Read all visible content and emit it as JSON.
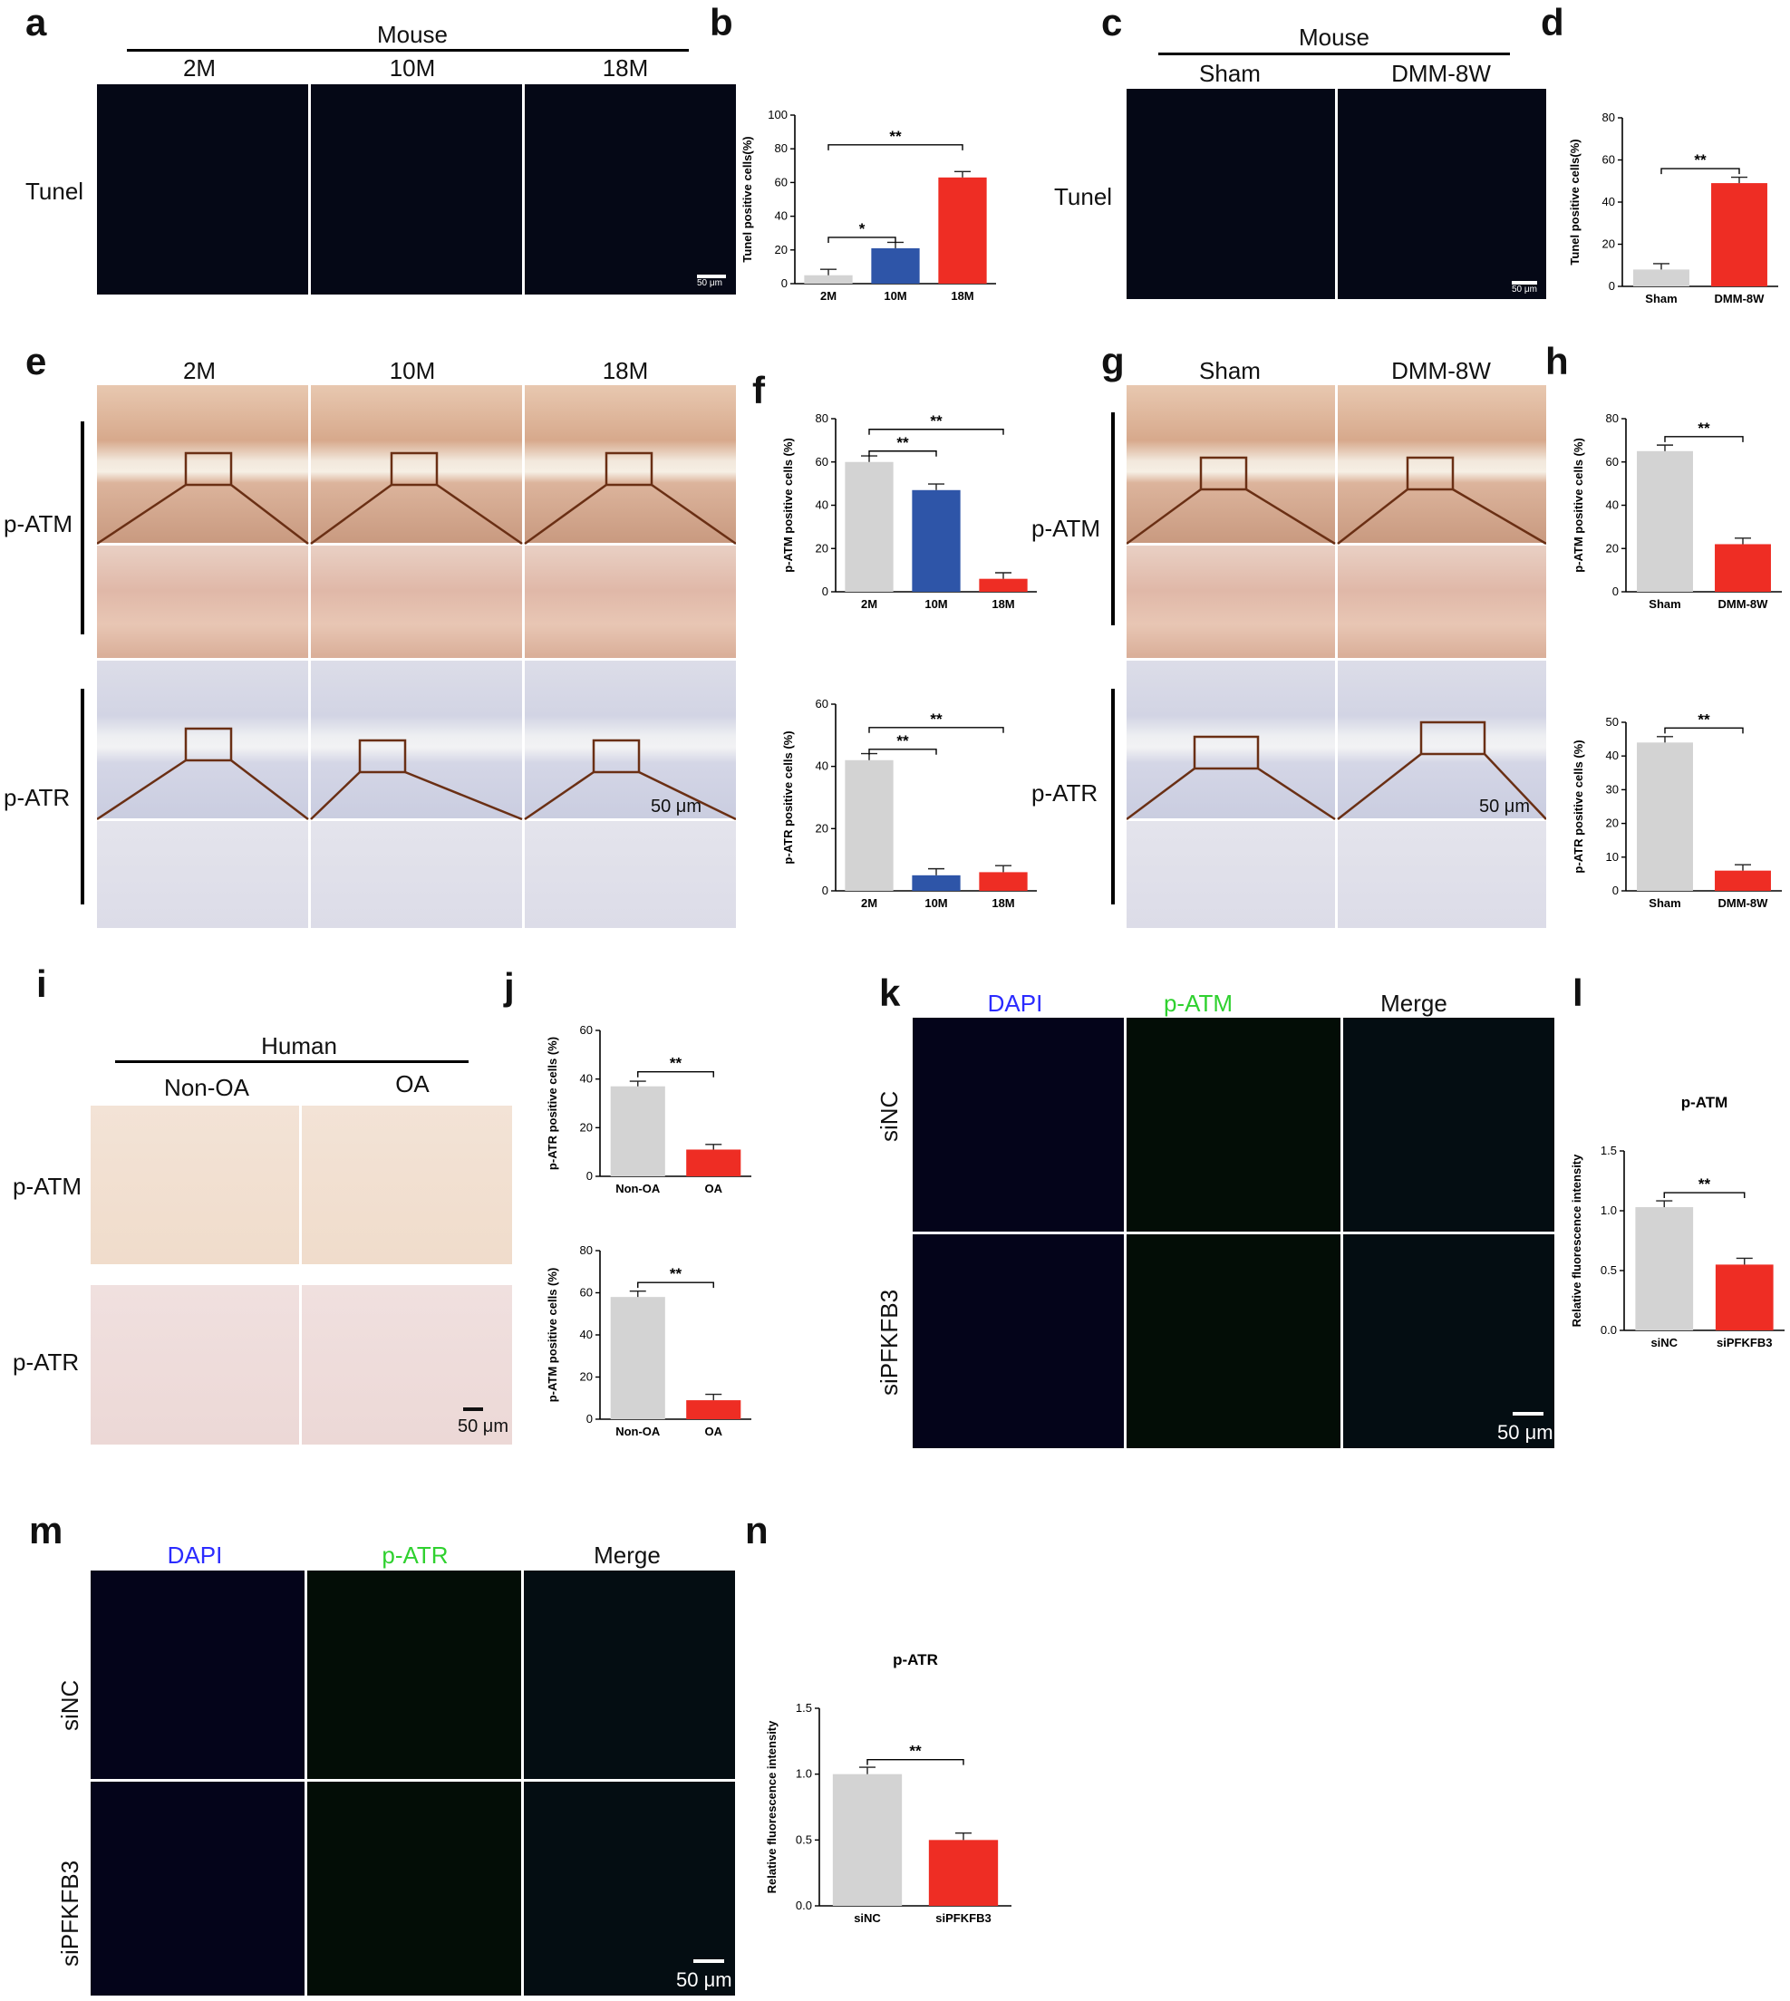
{
  "panel_letters": [
    "a",
    "b",
    "c",
    "d",
    "e",
    "f",
    "g",
    "h",
    "i",
    "j",
    "k",
    "l",
    "m",
    "n"
  ],
  "panel_a": {
    "group": "Mouse",
    "cols": [
      "2M",
      "10M",
      "18M"
    ],
    "row": "Tunel",
    "scale": "50 μm"
  },
  "panel_c": {
    "group": "Mouse",
    "cols": [
      "Sham",
      "DMM-8W"
    ],
    "row": "Tunel",
    "scale": "50 μm"
  },
  "panel_e": {
    "cols": [
      "2M",
      "10M",
      "18M"
    ],
    "rows": [
      "p-ATM",
      "p-ATR"
    ],
    "scale": "50 μm"
  },
  "panel_g": {
    "cols": [
      "Sham",
      "DMM-8W"
    ],
    "rows": [
      "p-ATM",
      "p-ATR"
    ],
    "scale": "50 μm"
  },
  "panel_i": {
    "group": "Human",
    "cols": [
      "Non-OA",
      "OA"
    ],
    "rows": [
      "p-ATM",
      "p-ATR"
    ],
    "scale": "50 μm"
  },
  "panel_k": {
    "cols": [
      "DAPI",
      "p-ATM",
      "Merge"
    ],
    "rows": [
      "siNC",
      "siPFKFB3"
    ],
    "scale": "50 μm"
  },
  "panel_m": {
    "cols": [
      "DAPI",
      "p-ATR",
      "Merge"
    ],
    "rows": [
      "siNC",
      "siPFKFB3"
    ],
    "scale": "50 μm"
  },
  "colors": {
    "grey": "#d3d3d3",
    "blue": "#2e55a8",
    "red": "#ee2d24",
    "dapi": "#2b2bff",
    "green": "#2fd12f"
  },
  "chart_data": [
    {
      "id": "b",
      "type": "bar",
      "categories": [
        "2M",
        "10M",
        "18M"
      ],
      "values": [
        5,
        21,
        63
      ],
      "ylabel": "Tunel positive cells(%)",
      "ylim": [
        0,
        100
      ],
      "yticks": [
        0,
        20,
        40,
        60,
        80,
        100
      ],
      "colors": [
        "grey",
        "blue",
        "red"
      ],
      "sig": [
        {
          "from": 0,
          "to": 1,
          "label": "*"
        },
        {
          "from": 0,
          "to": 2,
          "label": "**"
        }
      ]
    },
    {
      "id": "d",
      "type": "bar",
      "categories": [
        "Sham",
        "DMM-8W"
      ],
      "values": [
        8,
        49
      ],
      "ylabel": "Tunel positive cells(%)",
      "ylim": [
        0,
        80
      ],
      "yticks": [
        0,
        20,
        40,
        60,
        80
      ],
      "colors": [
        "grey",
        "red"
      ],
      "sig": [
        {
          "from": 0,
          "to": 1,
          "label": "**"
        }
      ]
    },
    {
      "id": "f1",
      "type": "bar",
      "categories": [
        "2M",
        "10M",
        "18M"
      ],
      "values": [
        60,
        47,
        6
      ],
      "ylabel": "p-ATM positive cells (%)",
      "ylim": [
        0,
        80
      ],
      "yticks": [
        0,
        20,
        40,
        60,
        80
      ],
      "colors": [
        "grey",
        "blue",
        "red"
      ],
      "sig": [
        {
          "from": 0,
          "to": 1,
          "label": "**"
        },
        {
          "from": 0,
          "to": 2,
          "label": "**"
        }
      ]
    },
    {
      "id": "f2",
      "type": "bar",
      "categories": [
        "2M",
        "10M",
        "18M"
      ],
      "values": [
        42,
        5,
        6
      ],
      "ylabel": "p-ATR positive cells (%)",
      "ylim": [
        0,
        60
      ],
      "yticks": [
        0,
        20,
        40,
        60
      ],
      "colors": [
        "grey",
        "blue",
        "red"
      ],
      "sig": [
        {
          "from": 0,
          "to": 1,
          "label": "**"
        },
        {
          "from": 0,
          "to": 2,
          "label": "**"
        }
      ]
    },
    {
      "id": "h1",
      "type": "bar",
      "categories": [
        "Sham",
        "DMM-8W"
      ],
      "values": [
        65,
        22
      ],
      "ylabel": "p-ATM positive cells (%)",
      "ylim": [
        0,
        80
      ],
      "yticks": [
        0,
        20,
        40,
        60,
        80
      ],
      "colors": [
        "grey",
        "red"
      ],
      "sig": [
        {
          "from": 0,
          "to": 1,
          "label": "**"
        }
      ]
    },
    {
      "id": "h2",
      "type": "bar",
      "categories": [
        "Sham",
        "DMM-8W"
      ],
      "values": [
        44,
        6
      ],
      "ylabel": "p-ATR positive cells (%)",
      "ylim": [
        0,
        50
      ],
      "yticks": [
        0,
        10,
        20,
        30,
        40,
        50
      ],
      "colors": [
        "grey",
        "red"
      ],
      "sig": [
        {
          "from": 0,
          "to": 1,
          "label": "**"
        }
      ]
    },
    {
      "id": "j1",
      "type": "bar",
      "categories": [
        "Non-OA",
        "OA"
      ],
      "values": [
        37,
        11
      ],
      "ylabel": "p-ATR positive cells (%)",
      "ylim": [
        0,
        60
      ],
      "yticks": [
        0,
        20,
        40,
        60
      ],
      "colors": [
        "grey",
        "red"
      ],
      "sig": [
        {
          "from": 0,
          "to": 1,
          "label": "**"
        }
      ]
    },
    {
      "id": "j2",
      "type": "bar",
      "categories": [
        "Non-OA",
        "OA"
      ],
      "values": [
        58,
        9
      ],
      "ylabel": "p-ATM positive cells (%)",
      "ylim": [
        0,
        80
      ],
      "yticks": [
        0,
        20,
        40,
        60,
        80
      ],
      "colors": [
        "grey",
        "red"
      ],
      "sig": [
        {
          "from": 0,
          "to": 1,
          "label": "**"
        }
      ]
    },
    {
      "id": "l",
      "type": "bar",
      "title": "p-ATM",
      "categories": [
        "siNC",
        "siPFKFB3"
      ],
      "values": [
        1.03,
        0.55
      ],
      "ylabel": "Relative fluorescence intensity",
      "ylim": [
        0,
        1.5
      ],
      "yticks": [
        "0.0",
        "0.5",
        "1.0",
        "1.5"
      ],
      "colors": [
        "grey",
        "red"
      ],
      "sig": [
        {
          "from": 0,
          "to": 1,
          "label": "**"
        }
      ]
    },
    {
      "id": "n",
      "type": "bar",
      "title": "p-ATR",
      "categories": [
        "siNC",
        "siPFKFB3"
      ],
      "values": [
        1.0,
        0.5
      ],
      "ylabel": "Relative fluorescence intensity",
      "ylim": [
        0,
        1.5
      ],
      "yticks": [
        "0.0",
        "0.5",
        "1.0",
        "1.5"
      ],
      "colors": [
        "grey",
        "red"
      ],
      "sig": [
        {
          "from": 0,
          "to": 1,
          "label": "**"
        }
      ]
    }
  ]
}
